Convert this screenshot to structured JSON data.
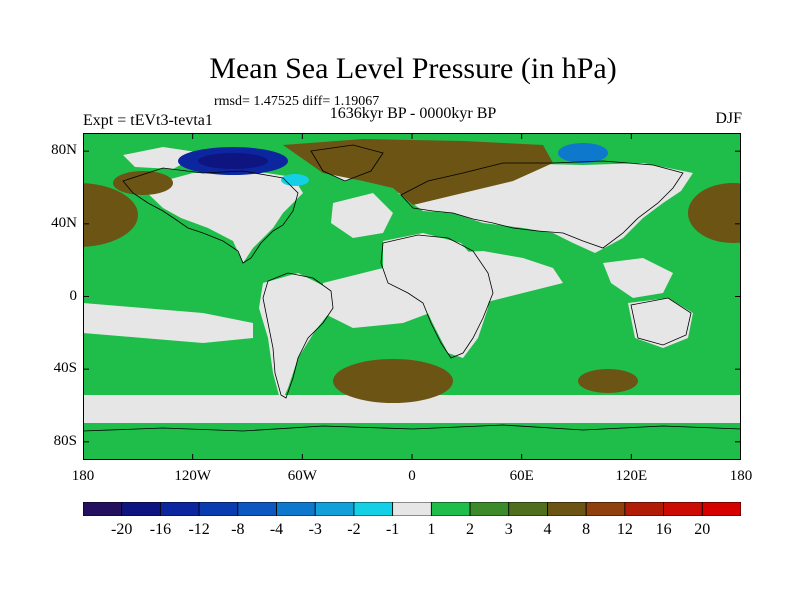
{
  "title": "Mean Sea Level Pressure (in hPa)",
  "stats": "rmsd= 1.47525 diff= 1.19067",
  "period": "1636kyr BP - 0000kyr BP",
  "experiment": "Expt = tEVt3-tevta1",
  "season": "DJF",
  "map": {
    "projection": "cylindrical equidistant",
    "ocean_fill": "#1fbd4a",
    "land_fill": "#e6e6e6",
    "coastline_color": "#000000",
    "lat_labels": [
      "80N",
      "40N",
      "0",
      "40S",
      "80S"
    ],
    "lat_values": [
      80,
      40,
      0,
      -40,
      -80
    ],
    "lon_labels": [
      "180",
      "120W",
      "60W",
      "0",
      "60E",
      "120E",
      "180"
    ],
    "lon_values": [
      -180,
      -120,
      -60,
      0,
      60,
      120,
      180
    ],
    "lat_range": [
      -90,
      90
    ],
    "lon_range": [
      -180,
      180
    ]
  },
  "colorbar": {
    "labels": [
      "-20",
      "-16",
      "-12",
      "-8",
      "-4",
      "-3",
      "-2",
      "-1",
      "1",
      "2",
      "3",
      "4",
      "8",
      "12",
      "16",
      "20"
    ],
    "colors": [
      "#24105e",
      "#0e1480",
      "#0c26a0",
      "#0a3cb0",
      "#0c58c0",
      "#0e78cc",
      "#12a0d8",
      "#14d0e6",
      "#e6e6e6",
      "#1fbd4a",
      "#3d8a2a",
      "#4f6e1e",
      "#6b5414",
      "#90400c",
      "#b01c06",
      "#cc0c04",
      "#d60000"
    ]
  }
}
